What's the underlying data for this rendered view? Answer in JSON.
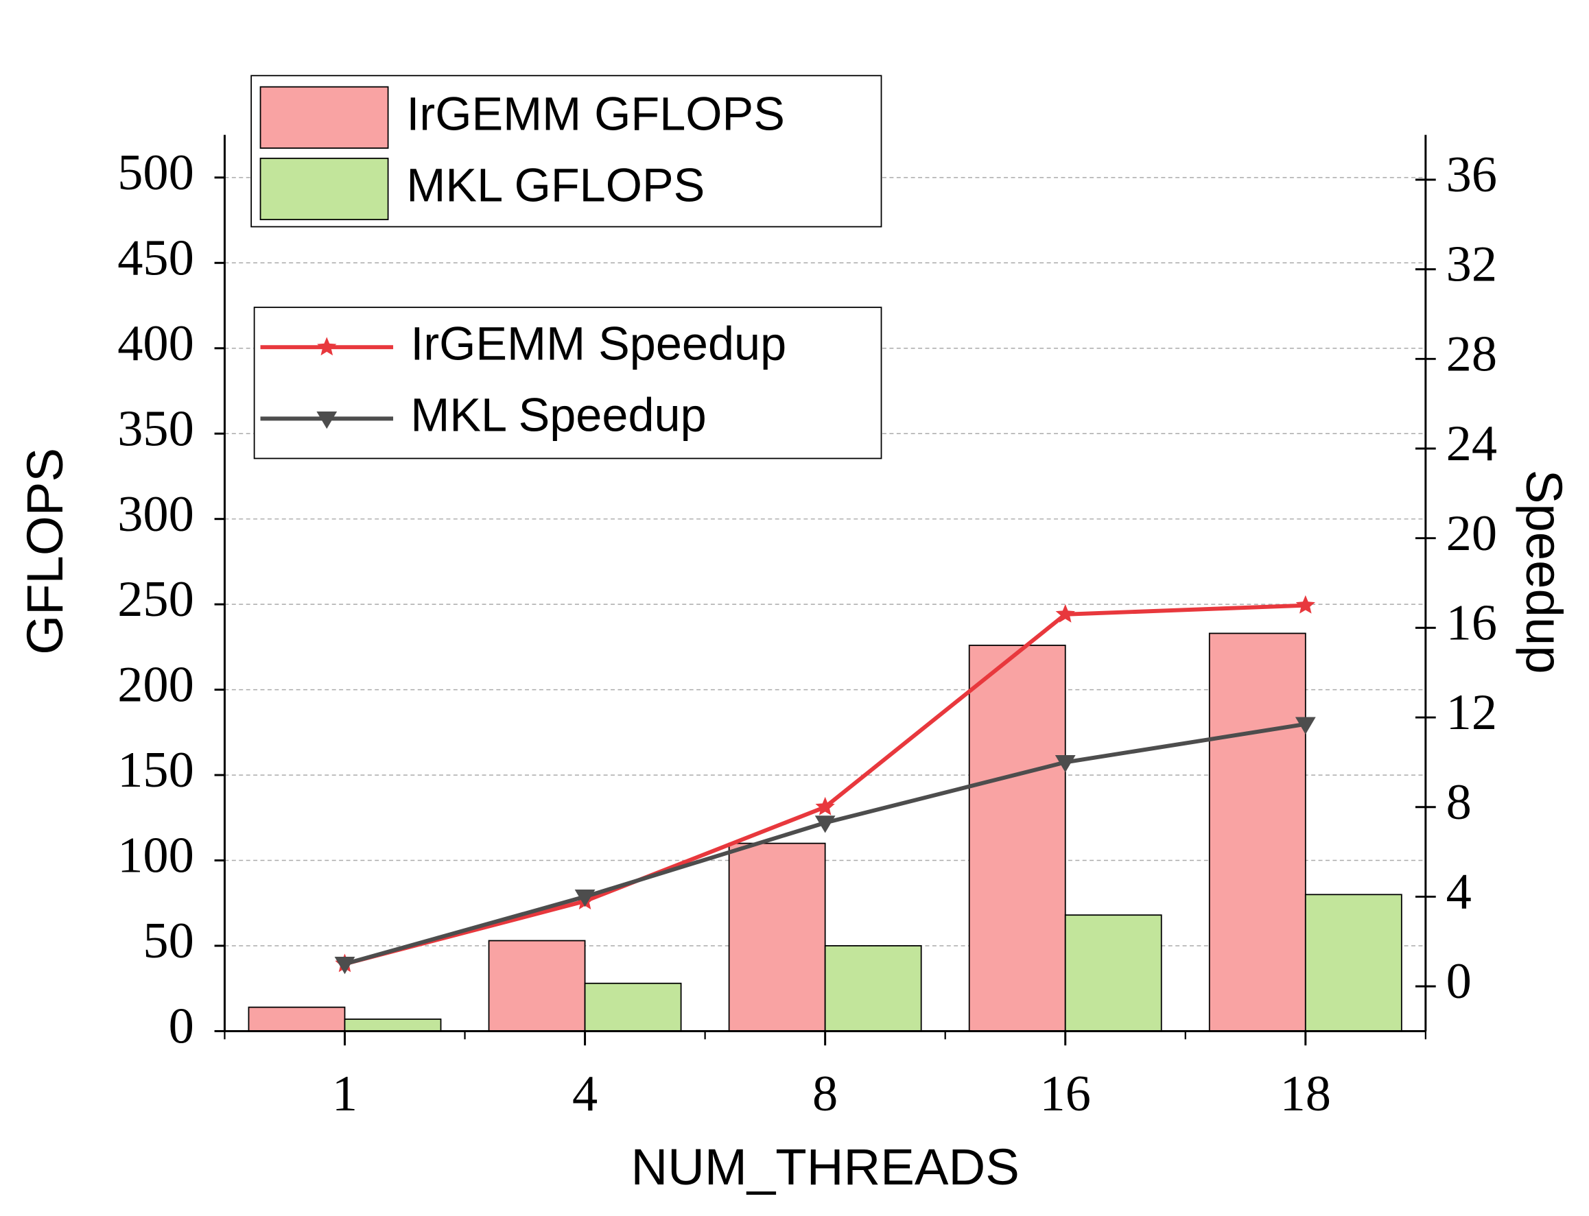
{
  "chart_data": {
    "type": "bar",
    "x_label": "NUM_THREADS",
    "y_label": "GFLOPS",
    "y2_label": "Speedup",
    "categories": [
      "1",
      "4",
      "8",
      "16",
      "18"
    ],
    "series": [
      {
        "name": "IrGEMM GFLOPS",
        "type": "bar",
        "color": "#f9a3a3",
        "values": [
          14,
          53,
          110,
          226,
          233
        ]
      },
      {
        "name": "MKL GFLOPS",
        "type": "bar",
        "color": "#c2e59b",
        "values": [
          7,
          28,
          50,
          68,
          80
        ]
      },
      {
        "name": "IrGEMM Speedup",
        "type": "line",
        "axis": "y2",
        "marker": "star",
        "color": "#e8383d",
        "values": [
          1.0,
          3.8,
          8.0,
          16.6,
          17.0
        ]
      },
      {
        "name": "MKL Speedup",
        "type": "line",
        "axis": "y2",
        "marker": "triangle-down",
        "color": "#4d4d4d",
        "values": [
          1.0,
          4.0,
          7.3,
          10.0,
          11.7
        ]
      }
    ],
    "ylim": [
      0,
      525
    ],
    "yticks": [
      0,
      50,
      100,
      150,
      200,
      250,
      300,
      350,
      400,
      450,
      500
    ],
    "y2lim": [
      -2,
      38
    ],
    "y2ticks": [
      0,
      4,
      8,
      12,
      16,
      20,
      24,
      28,
      32,
      36
    ],
    "grid": true
  }
}
